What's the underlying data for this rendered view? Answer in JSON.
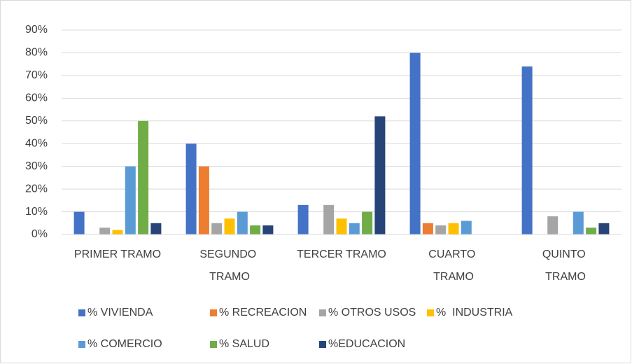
{
  "chart_data": {
    "type": "bar",
    "categories": [
      "PRIMER TRAMO",
      "SEGUNDO TRAMO",
      "TERCER TRAMO",
      "CUARTO TRAMO",
      "QUINTO TRAMO"
    ],
    "series": [
      {
        "name": "% VIVIENDA",
        "color": "#4472c4",
        "values": [
          10,
          40,
          13,
          80,
          74
        ]
      },
      {
        "name": "% RECREACION",
        "color": "#ed7d31",
        "values": [
          0,
          30,
          0,
          5,
          0
        ]
      },
      {
        "name": "% OTROS USOS",
        "color": "#a5a5a5",
        "values": [
          3,
          5,
          13,
          4,
          8
        ]
      },
      {
        "name": "%  INDUSTRIA",
        "color": "#ffc000",
        "values": [
          2,
          7,
          7,
          5,
          0
        ]
      },
      {
        "name": "% COMERCIO",
        "color": "#5b9bd5",
        "values": [
          30,
          10,
          5,
          6,
          10
        ]
      },
      {
        "name": "% SALUD",
        "color": "#70ad47",
        "values": [
          50,
          4,
          10,
          0,
          3
        ]
      },
      {
        "name": "%EDUCACION",
        "color": "#264478",
        "values": [
          5,
          4,
          52,
          0,
          5
        ]
      }
    ],
    "ylim": [
      0,
      90
    ],
    "yticks": [
      {
        "value": 0,
        "label": "0%"
      },
      {
        "value": 10,
        "label": "10%"
      },
      {
        "value": 20,
        "label": "20%"
      },
      {
        "value": 30,
        "label": "30%"
      },
      {
        "value": 40,
        "label": "40%"
      },
      {
        "value": 50,
        "label": "50%"
      },
      {
        "value": 60,
        "label": "60%"
      },
      {
        "value": 70,
        "label": "70%"
      },
      {
        "value": 80,
        "label": "80%"
      },
      {
        "value": 90,
        "label": "90%"
      }
    ],
    "grid": true,
    "legend": "bottom"
  }
}
